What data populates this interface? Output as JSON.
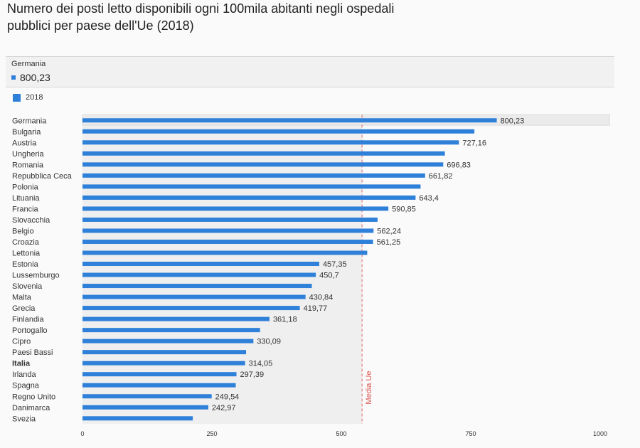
{
  "title": "Numero dei posti letto disponibili ogni 100mila abitanti negli ospedali pubblici per paese dell'Ue (2018)",
  "tooltip": {
    "country": "Germania",
    "value": "800,23"
  },
  "legend": {
    "label": "2018"
  },
  "colors": {
    "bar": "#2f80d9",
    "average_line": "#e06666",
    "plot_band": "#efefef",
    "hover_band": "#ebebeb"
  },
  "chart_data": {
    "type": "bar",
    "orientation": "horizontal",
    "title": "Numero dei posti letto disponibili ogni 100mila abitanti negli ospedali pubblici per paese dell'Ue (2018)",
    "xlim": [
      0,
      1000
    ],
    "xticks": [
      0,
      250,
      500,
      750,
      1000
    ],
    "series": [
      {
        "name": "2018"
      }
    ],
    "highlighted_category": "Germania",
    "bold_category": "Italia",
    "reference_line": {
      "label": "Media Ue",
      "value": 540
    },
    "categories": [
      "Germania",
      "Bulgaria",
      "Austria",
      "Ungheria",
      "Romania",
      "Repubblica Ceca",
      "Polonia",
      "Lituania",
      "Francia",
      "Slovacchia",
      "Belgio",
      "Croazia",
      "Lettonia",
      "Estonia",
      "Lussemburgo",
      "Slovenia",
      "Malta",
      "Grecia",
      "Finlandia",
      "Portogallo",
      "Cipro",
      "Paesi Bassi",
      "Italia",
      "Irlanda",
      "Spagna",
      "Regno Unito",
      "Danimarca",
      "Svezia"
    ],
    "values": [
      800.23,
      757,
      727.16,
      700,
      696.83,
      661.82,
      653,
      643.4,
      590.85,
      570,
      562.24,
      561.25,
      550,
      457.35,
      450.7,
      443,
      430.84,
      419.77,
      361.18,
      343,
      330.09,
      316,
      314.05,
      297.39,
      296,
      249.54,
      242.97,
      213
    ],
    "data_labels": [
      "800,23",
      "",
      "727,16",
      "",
      "696,83",
      "661,82",
      "",
      "643,4",
      "590,85",
      "",
      "562,24",
      "561,25",
      "",
      "457,35",
      "450,7",
      "",
      "430,84",
      "419,77",
      "361,18",
      "",
      "330,09",
      "",
      "314,05",
      "297,39",
      "",
      "249,54",
      "242,97",
      ""
    ]
  }
}
